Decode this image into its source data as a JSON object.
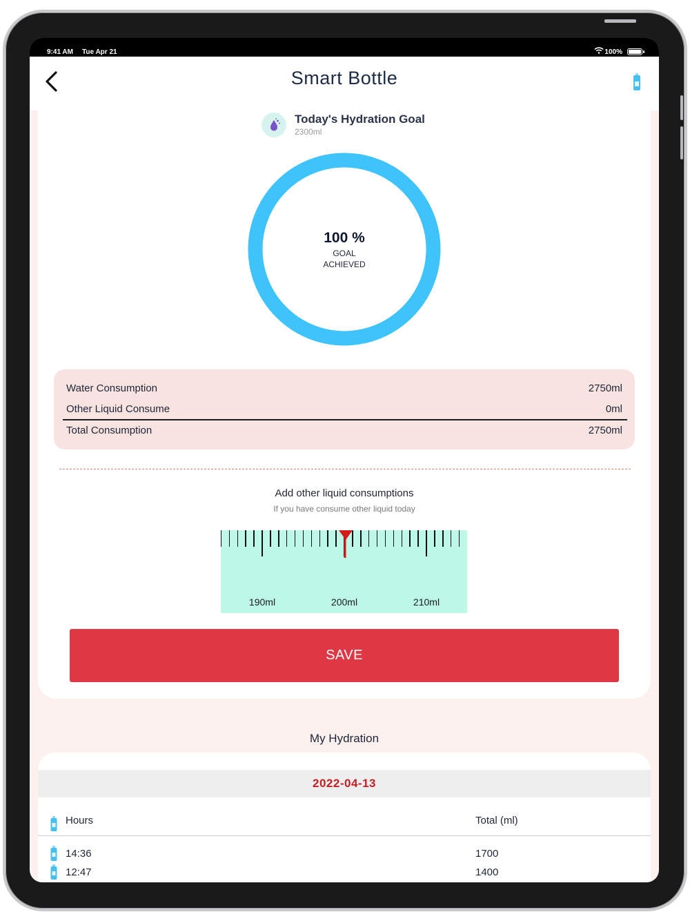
{
  "statusbar": {
    "time": "9:41 AM",
    "date": "Tue Apr 21",
    "battery": "100%"
  },
  "nav": {
    "title": "Smart Bottle"
  },
  "goal": {
    "title": "Today's Hydration Goal",
    "amount": "2300ml",
    "progress_percent": 100
  },
  "ring": {
    "percent": "100 %",
    "label": "GOAL ACHIEVED",
    "color": "#3fc3fb"
  },
  "summary": {
    "water_label": "Water Consumption",
    "water_value": "2750ml",
    "other_label": "Other Liquid Consume",
    "other_value": "0ml",
    "total_label": "Total Consumption",
    "total_value": "2750ml"
  },
  "add": {
    "title": "Add other liquid consumptions",
    "subtitle": "If you have consume other liquid today"
  },
  "ruler": {
    "labels": [
      "190ml",
      "200ml",
      "210ml"
    ],
    "selected_ml": 200
  },
  "save_label": "SAVE",
  "history": {
    "heading": "My Hydration",
    "date": "2022-04-13",
    "col_hours": "Hours",
    "col_total": "Total (ml)",
    "rows": [
      {
        "time": "14:36",
        "total": "1700"
      },
      {
        "time": "12:47",
        "total": "1400"
      }
    ]
  },
  "colors": {
    "accent": "#e03744",
    "ring": "#3fc3fb",
    "ruler_bg": "#bdf8e7",
    "summary_bg": "#f8e3e1",
    "date": "#c21f24"
  }
}
